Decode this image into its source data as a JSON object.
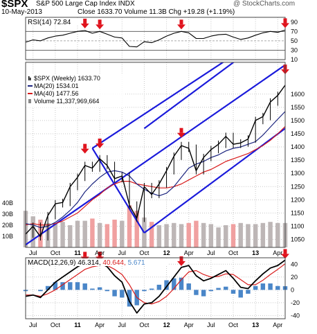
{
  "header": {
    "symbol": "$SPX",
    "name": "S&P 500 Large Cap Index INDX",
    "date": "10-May-2013",
    "quote": "Close 1633.70 Volume 11.3B Chg +19.28 (+1.19%)",
    "watermark": "@ StockCharts.com"
  },
  "colors": {
    "channel": "#1a1adb",
    "ma20": "#1a237e",
    "ma40": "#d81b1b",
    "price": "#000000",
    "volume": "#bdb6b6",
    "volume_red": "#f0a0a0",
    "macd_hist": "#4a86c8",
    "arrow": "#e0141e",
    "grid": "#c8c8c8"
  },
  "chart_data": [
    {
      "type": "line",
      "panel": "rsi",
      "label": "RSI(14) 72.84",
      "ylim": [
        10,
        100
      ],
      "y_ticks": [
        10,
        30,
        50,
        70,
        90
      ],
      "x": [
        "2010-06",
        "2010-07",
        "2010-08",
        "2010-09",
        "2010-10",
        "2010-11",
        "2010-12",
        "2011-01",
        "2011-02",
        "2011-03",
        "2011-04",
        "2011-05",
        "2011-06",
        "2011-07",
        "2011-08",
        "2011-09",
        "2011-10",
        "2011-11",
        "2011-12",
        "2012-01",
        "2012-02",
        "2012-03",
        "2012-04",
        "2012-05",
        "2012-06",
        "2012-07",
        "2012-08",
        "2012-09",
        "2012-10",
        "2012-11",
        "2012-12",
        "2013-01",
        "2013-02",
        "2013-03",
        "2013-04",
        "2013-05"
      ],
      "values": [
        47,
        52,
        50,
        56,
        60,
        62,
        66,
        70,
        72,
        66,
        70,
        64,
        58,
        56,
        38,
        37,
        48,
        46,
        52,
        60,
        66,
        70,
        67,
        55,
        55,
        60,
        63,
        64,
        58,
        53,
        56,
        62,
        67,
        70,
        68,
        72.84
      ]
    },
    {
      "type": "line",
      "panel": "price",
      "legend": [
        "$SPX (Weekly) 1633.70",
        "MA(20) 1534.01",
        "MA(40) 1477.56",
        "Volume 11,337,969,664"
      ],
      "ylim": [
        1020,
        1720
      ],
      "y_ticks": [
        1050,
        1100,
        1150,
        1200,
        1250,
        1300,
        1350,
        1400,
        1450,
        1500,
        1550,
        1600
      ],
      "volume_ticks": [
        "10B",
        "20B",
        "30B",
        "40B"
      ],
      "volume_max": 50,
      "x": [
        "2010-06",
        "2010-07",
        "2010-08",
        "2010-09",
        "2010-10",
        "2010-11",
        "2010-12",
        "2011-01",
        "2011-02",
        "2011-03",
        "2011-04",
        "2011-05",
        "2011-06",
        "2011-07",
        "2011-08",
        "2011-09",
        "2011-10",
        "2011-11",
        "2011-12",
        "2012-01",
        "2012-02",
        "2012-03",
        "2012-04",
        "2012-05",
        "2012-06",
        "2012-07",
        "2012-08",
        "2012-09",
        "2012-10",
        "2012-11",
        "2012-12",
        "2013-01",
        "2013-02",
        "2013-03",
        "2013-04",
        "2013-05"
      ],
      "series": [
        {
          "name": "$SPX (Weekly)",
          "values": [
            1070,
            1100,
            1060,
            1140,
            1185,
            1190,
            1250,
            1285,
            1330,
            1320,
            1355,
            1330,
            1280,
            1290,
            1180,
            1130,
            1250,
            1220,
            1260,
            1310,
            1365,
            1405,
            1395,
            1310,
            1360,
            1390,
            1410,
            1440,
            1410,
            1415,
            1430,
            1500,
            1515,
            1570,
            1595,
            1633.7
          ]
        },
        {
          "name": "MA(20)",
          "values": [
            1110,
            1105,
            1095,
            1100,
            1115,
            1135,
            1160,
            1190,
            1230,
            1260,
            1285,
            1305,
            1310,
            1305,
            1290,
            1260,
            1240,
            1225,
            1215,
            1225,
            1250,
            1285,
            1320,
            1335,
            1345,
            1360,
            1370,
            1385,
            1395,
            1400,
            1410,
            1420,
            1445,
            1475,
            1505,
            1534.01
          ]
        },
        {
          "name": "MA(40)",
          "values": [
            1105,
            1110,
            1105,
            1105,
            1110,
            1120,
            1135,
            1150,
            1175,
            1200,
            1220,
            1245,
            1260,
            1270,
            1270,
            1260,
            1255,
            1250,
            1245,
            1245,
            1250,
            1260,
            1275,
            1290,
            1305,
            1315,
            1330,
            1345,
            1355,
            1365,
            1375,
            1390,
            1405,
            1425,
            1450,
            1477.56
          ]
        }
      ],
      "volume": [
        33,
        28,
        25,
        22,
        22,
        23,
        20,
        24,
        24,
        26,
        22,
        21,
        25,
        24,
        38,
        33,
        27,
        23,
        20,
        21,
        22,
        21,
        22,
        24,
        22,
        21,
        18,
        20,
        21,
        22,
        21,
        21,
        22,
        23,
        22,
        22
      ],
      "channel_lines": [
        {
          "from": [
            "2010-06",
            1030
          ],
          "to": [
            "2013-05",
            1710
          ]
        },
        {
          "from": [
            "2011-03",
            1395
          ],
          "to": [
            "2013-05",
            1875
          ]
        },
        {
          "from": [
            "2011-10",
            1075
          ],
          "to": [
            "2013-05",
            1470
          ]
        },
        {
          "from": [
            "2011-10",
            1470
          ],
          "to": [
            "2013-05",
            1865
          ]
        },
        {
          "from": [
            "2011-03",
            1395
          ],
          "to": [
            "2011-10",
            1075
          ]
        }
      ],
      "markers": [
        {
          "x": "2011-02",
          "value": 1375
        },
        {
          "x": "2011-04",
          "value": 1395
        },
        {
          "x": "2012-03",
          "value": 1435
        },
        {
          "x": "2013-05",
          "value": 1675
        }
      ]
    },
    {
      "type": "line",
      "panel": "macd",
      "label": "MACD(12,26,9)",
      "values_text": [
        "46.314",
        "40.644",
        "5.671"
      ],
      "ylim": [
        -45,
        50
      ],
      "y_ticks": [
        -40,
        -20,
        0,
        20,
        40
      ],
      "x": [
        "2010-06",
        "2010-07",
        "2010-08",
        "2010-09",
        "2010-10",
        "2010-11",
        "2010-12",
        "2011-01",
        "2011-02",
        "2011-03",
        "2011-04",
        "2011-05",
        "2011-06",
        "2011-07",
        "2011-08",
        "2011-09",
        "2011-10",
        "2011-11",
        "2011-12",
        "2012-01",
        "2012-02",
        "2012-03",
        "2012-04",
        "2012-05",
        "2012-06",
        "2012-07",
        "2012-08",
        "2012-09",
        "2012-10",
        "2012-11",
        "2012-12",
        "2013-01",
        "2013-02",
        "2013-03",
        "2013-04",
        "2013-05"
      ],
      "series": [
        {
          "name": "MACD",
          "values": [
            -10,
            -8,
            -12,
            0,
            12,
            20,
            28,
            36,
            42,
            38,
            42,
            36,
            22,
            12,
            -18,
            -36,
            -22,
            -20,
            -10,
            5,
            20,
            35,
            38,
            22,
            14,
            18,
            24,
            30,
            18,
            4,
            2,
            14,
            25,
            34,
            38,
            46.314
          ]
        },
        {
          "name": "Signal",
          "values": [
            -8,
            -8,
            -10,
            -6,
            0,
            8,
            16,
            24,
            32,
            36,
            38,
            38,
            32,
            24,
            8,
            -12,
            -20,
            -22,
            -18,
            -10,
            2,
            16,
            28,
            30,
            24,
            20,
            21,
            25,
            24,
            16,
            8,
            8,
            15,
            24,
            32,
            40.644
          ]
        },
        {
          "name": "Histogram",
          "values": [
            -2,
            0,
            -2,
            6,
            12,
            12,
            12,
            12,
            10,
            2,
            4,
            -2,
            -10,
            -12,
            -26,
            -24,
            -2,
            2,
            8,
            15,
            18,
            19,
            10,
            -8,
            -10,
            -2,
            3,
            5,
            -6,
            -12,
            -6,
            6,
            10,
            10,
            6,
            5.671
          ]
        }
      ]
    }
  ],
  "x_axis_labels": [
    "Jul",
    "Oct",
    "11",
    "Apr",
    "Jul",
    "Oct",
    "12",
    "Apr",
    "Jul",
    "Oct",
    "13",
    "Apr"
  ],
  "x_axis_months": [
    "2010-07",
    "2010-10",
    "2011-01",
    "2011-04",
    "2011-07",
    "2011-10",
    "2012-01",
    "2012-04",
    "2012-07",
    "2012-10",
    "2013-01",
    "2013-04"
  ],
  "x_axis_bold": [
    "11",
    "12",
    "13"
  ]
}
